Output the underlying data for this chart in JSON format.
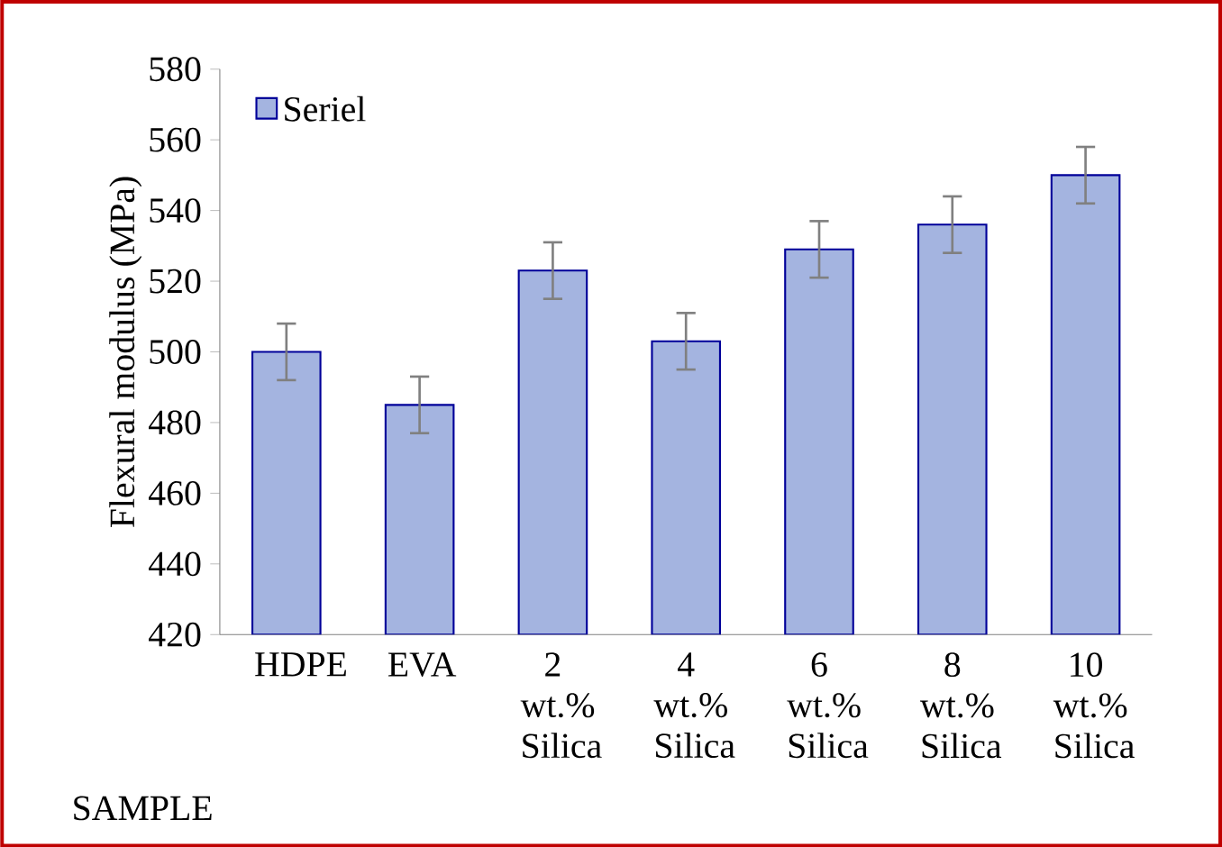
{
  "chart_data": {
    "type": "bar",
    "xlabel": "SAMPLE",
    "ylabel": "Flexural modulus (MPa)",
    "categories": [
      "HDPE",
      "EVA",
      "2 wt.% Silica",
      "4 wt.% Silica",
      "6 wt.% Silica",
      "8 wt.% Silica",
      "10 wt.% Silica"
    ],
    "series": [
      {
        "name": "Seriel",
        "color": "#a4b4e0",
        "values": [
          500,
          485,
          523,
          503,
          529,
          536,
          550
        ],
        "errors": [
          8,
          8,
          8,
          8,
          8,
          8,
          8
        ]
      }
    ],
    "ylim": [
      420,
      580
    ],
    "yticks": [
      420,
      440,
      460,
      480,
      500,
      520,
      540,
      560,
      580
    ],
    "legend": "top left"
  }
}
